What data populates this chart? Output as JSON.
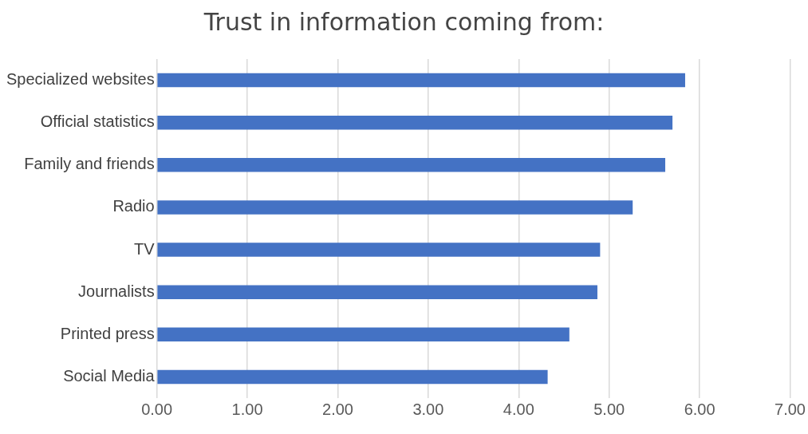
{
  "chart_data": {
    "type": "bar",
    "orientation": "horizontal",
    "title": "Trust in information coming from:",
    "categories": [
      "Specialized websites",
      "Official statistics",
      "Family and friends",
      "Radio",
      "TV",
      "Journalists",
      "Printed press",
      "Social Media"
    ],
    "values": [
      5.84,
      5.7,
      5.62,
      5.26,
      4.9,
      4.87,
      4.56,
      4.32
    ],
    "color": "#4472c4",
    "xlim": [
      0,
      7
    ],
    "xticks": [
      {
        "value": 0,
        "label": "0.00"
      },
      {
        "value": 1,
        "label": "1.00"
      },
      {
        "value": 2,
        "label": "2.00"
      },
      {
        "value": 3,
        "label": "3.00"
      },
      {
        "value": 4,
        "label": "4.00"
      },
      {
        "value": 5,
        "label": "5.00"
      },
      {
        "value": 6,
        "label": "6.00"
      },
      {
        "value": 7,
        "label": "7.00"
      }
    ],
    "grid": "x",
    "legend": false
  }
}
